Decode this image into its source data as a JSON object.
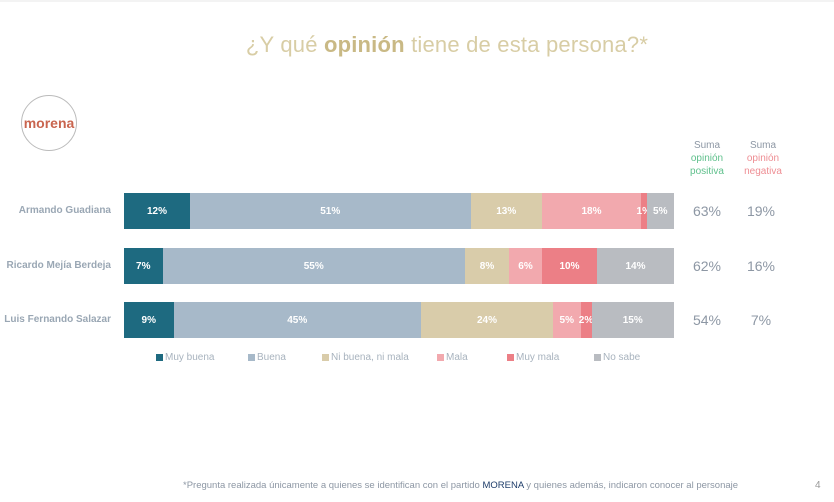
{
  "title": {
    "pre": "¿Y qué ",
    "bold": "opinión",
    "post": " tiene de esta persona?*"
  },
  "logo": "morena",
  "headers": {
    "positive": {
      "l1": "Suma",
      "l2": "opinión",
      "l3": "positiva"
    },
    "negative": {
      "l1": "Suma",
      "l2": "opinión",
      "l3": "negativa"
    }
  },
  "colors": {
    "positive": "#5fc08c",
    "negative": "#ee8d93"
  },
  "chart_data": {
    "type": "bar",
    "orientation": "horizontal",
    "stacked": true,
    "unit": "%",
    "categories": [
      "Armando Guadiana",
      "Ricardo Mejía Berdeja",
      "Luis Fernando Salazar"
    ],
    "series": [
      {
        "name": "Muy buena",
        "color": "#1e6a80",
        "values": [
          12,
          7,
          9
        ]
      },
      {
        "name": "Buena",
        "color": "#a7b9c9",
        "values": [
          51,
          55,
          45
        ]
      },
      {
        "name": "Ni buena, ni mala",
        "color": "#d9ccaa",
        "values": [
          13,
          8,
          24
        ]
      },
      {
        "name": "Mala",
        "color": "#f2a9ae",
        "values": [
          18,
          6,
          5
        ]
      },
      {
        "name": "Muy mala",
        "color": "#ec7f86",
        "values": [
          1,
          10,
          2
        ]
      },
      {
        "name": "No sabe",
        "color": "#b9bcc1",
        "values": [
          5,
          14,
          15
        ]
      }
    ],
    "legend_position": "bottom",
    "sum_positive": [
      "63%",
      "62%",
      "54%"
    ],
    "sum_negative": [
      "19%",
      "16%",
      "7%"
    ]
  },
  "footer": {
    "pre": "*Pregunta realizada únicamente a quienes se identifican con el partido ",
    "bold": "MORENA",
    "post": " y quienes además, indicaron conocer al personaje"
  },
  "page_number": "4"
}
